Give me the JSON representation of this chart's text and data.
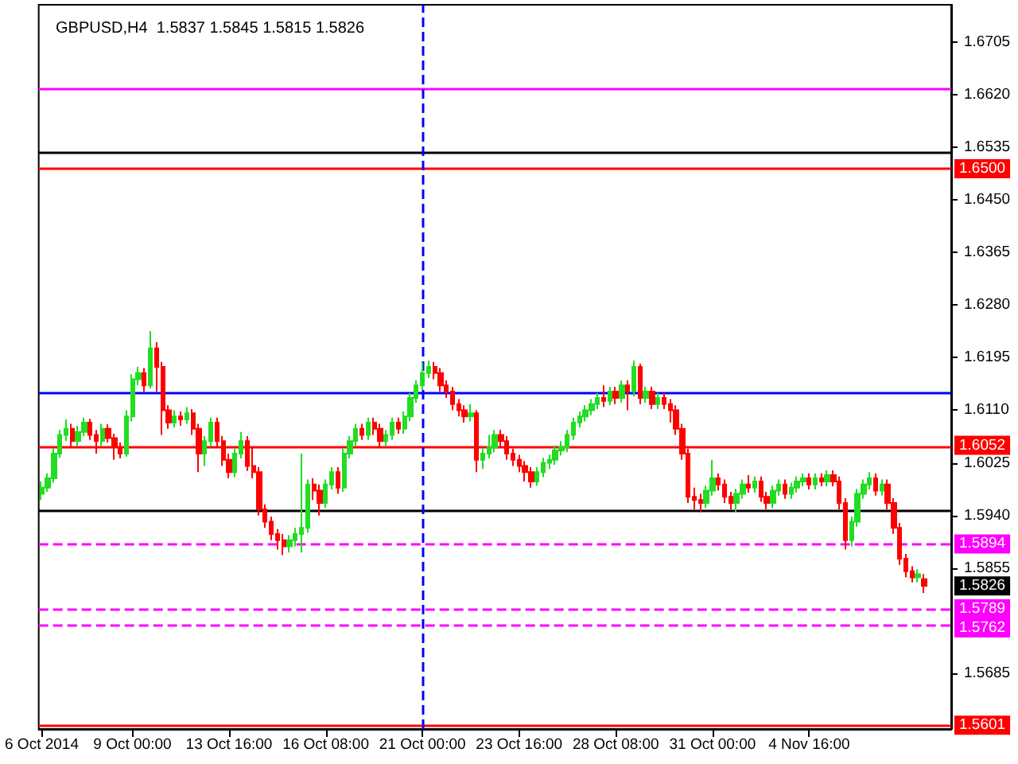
{
  "chart_data": {
    "type": "candlestick",
    "title": "GBPUSD,H4  1.5837 1.5845 1.5815 1.5826",
    "categories": [
      "6 Oct 2014",
      null,
      null,
      null,
      null,
      null,
      null,
      null,
      null,
      null,
      null,
      null,
      null,
      null,
      null,
      "9 Oct 00:00",
      null,
      null,
      null,
      null,
      null,
      null,
      null,
      null,
      null,
      null,
      null,
      null,
      null,
      null,
      null,
      "13 Oct 16:00",
      null,
      null,
      null,
      null,
      null,
      null,
      null,
      null,
      null,
      null,
      null,
      null,
      null,
      null,
      null,
      "16 Oct 08:00",
      null,
      null,
      null,
      null,
      null,
      null,
      null,
      null,
      null,
      null,
      null,
      null,
      null,
      null,
      null,
      "21 Oct 00:00",
      null,
      null,
      null,
      null,
      null,
      null,
      null,
      null,
      null,
      null,
      null,
      null,
      null,
      null,
      null,
      "23 Oct 16:00",
      null,
      null,
      null,
      null,
      null,
      null,
      null,
      null,
      null,
      null,
      null,
      null,
      null,
      null,
      null,
      "28 Oct 08:00",
      null,
      null,
      null,
      null,
      null,
      null,
      null,
      null,
      null,
      null,
      null,
      null,
      null,
      null,
      null,
      "31 Oct 00:00",
      null,
      null,
      null,
      null,
      null,
      null,
      null,
      null,
      null,
      null,
      null,
      null,
      null,
      null,
      null,
      "4 Nov 16:00",
      null,
      null,
      null,
      null,
      null,
      null,
      null,
      null,
      null,
      null,
      null,
      null,
      null,
      null,
      null,
      null,
      null,
      null,
      null
    ],
    "ohlc": [
      [
        1.5975,
        1.5995,
        1.5965,
        1.5985
      ],
      [
        1.5985,
        1.6008,
        1.5978,
        1.6
      ],
      [
        1.6,
        1.6048,
        1.5993,
        1.604
      ],
      [
        1.604,
        1.6078,
        1.6033,
        1.607
      ],
      [
        1.607,
        1.6095,
        1.606,
        1.608
      ],
      [
        1.608,
        1.6088,
        1.605,
        1.606
      ],
      [
        1.606,
        1.6085,
        1.6052,
        1.6075
      ],
      [
        1.6075,
        1.6098,
        1.6068,
        1.609
      ],
      [
        1.609,
        1.6096,
        1.6062,
        1.607
      ],
      [
        1.607,
        1.6078,
        1.604,
        1.606
      ],
      [
        1.606,
        1.6088,
        1.6052,
        1.608
      ],
      [
        1.608,
        1.6087,
        1.6058,
        1.6065
      ],
      [
        1.6065,
        1.6072,
        1.603,
        1.605
      ],
      [
        1.605,
        1.6058,
        1.6032,
        1.604
      ],
      [
        1.604,
        1.611,
        1.6035,
        1.61
      ],
      [
        1.61,
        1.6168,
        1.6092,
        1.616
      ],
      [
        1.616,
        1.618,
        1.615,
        1.617
      ],
      [
        1.617,
        1.6178,
        1.614,
        1.615
      ],
      [
        1.615,
        1.6238,
        1.6145,
        1.621
      ],
      [
        1.621,
        1.622,
        1.614,
        1.618
      ],
      [
        1.618,
        1.6188,
        1.607,
        1.611
      ],
      [
        1.611,
        1.6118,
        1.608,
        1.609
      ],
      [
        1.609,
        1.611,
        1.6082,
        1.61
      ],
      [
        1.61,
        1.6108,
        1.6085,
        1.6095
      ],
      [
        1.6095,
        1.6115,
        1.6088,
        1.6105
      ],
      [
        1.6105,
        1.6112,
        1.607,
        1.608
      ],
      [
        1.608,
        1.6088,
        1.601,
        1.604
      ],
      [
        1.604,
        1.6068,
        1.602,
        1.606
      ],
      [
        1.606,
        1.6098,
        1.6052,
        1.609
      ],
      [
        1.609,
        1.6098,
        1.605,
        1.606
      ],
      [
        1.606,
        1.6068,
        1.602,
        1.603
      ],
      [
        1.603,
        1.604,
        1.6,
        1.601
      ],
      [
        1.601,
        1.6048,
        1.6002,
        1.604
      ],
      [
        1.604,
        1.6075,
        1.6032,
        1.606
      ],
      [
        1.606,
        1.6068,
        1.6012,
        1.602
      ],
      [
        1.602,
        1.605,
        1.6,
        1.601
      ],
      [
        1.601,
        1.6018,
        1.594,
        1.595
      ],
      [
        1.595,
        1.5958,
        1.592,
        1.593
      ],
      [
        1.593,
        1.5938,
        1.59,
        1.591
      ],
      [
        1.591,
        1.5918,
        1.5885,
        1.59
      ],
      [
        1.59,
        1.591,
        1.5876,
        1.589
      ],
      [
        1.589,
        1.5908,
        1.588,
        1.59
      ],
      [
        1.59,
        1.592,
        1.589,
        1.591
      ],
      [
        1.591,
        1.604,
        1.588,
        1.592
      ],
      [
        1.592,
        1.5998,
        1.5912,
        1.599
      ],
      [
        1.599,
        1.6,
        1.5965,
        1.598
      ],
      [
        1.598,
        1.599,
        1.594,
        1.596
      ],
      [
        1.596,
        1.5998,
        1.5952,
        1.599
      ],
      [
        1.599,
        1.6018,
        1.5982,
        1.601
      ],
      [
        1.601,
        1.6018,
        1.5975,
        1.5985
      ],
      [
        1.5985,
        1.6048,
        1.5978,
        1.604
      ],
      [
        1.604,
        1.6068,
        1.6032,
        1.606
      ],
      [
        1.606,
        1.6088,
        1.6052,
        1.608
      ],
      [
        1.608,
        1.6088,
        1.6062,
        1.607
      ],
      [
        1.607,
        1.6098,
        1.6062,
        1.609
      ],
      [
        1.609,
        1.6098,
        1.607,
        1.608
      ],
      [
        1.608,
        1.6088,
        1.605,
        1.606
      ],
      [
        1.606,
        1.6078,
        1.6052,
        1.607
      ],
      [
        1.607,
        1.6098,
        1.6062,
        1.609
      ],
      [
        1.609,
        1.6098,
        1.6072,
        1.608
      ],
      [
        1.608,
        1.6108,
        1.6072,
        1.61
      ],
      [
        1.61,
        1.6138,
        1.6092,
        1.613
      ],
      [
        1.613,
        1.6158,
        1.6122,
        1.615
      ],
      [
        1.615,
        1.6187,
        1.6142,
        1.617
      ],
      [
        1.617,
        1.619,
        1.6162,
        1.618
      ],
      [
        1.618,
        1.6188,
        1.616,
        1.617
      ],
      [
        1.617,
        1.6178,
        1.614,
        1.615
      ],
      [
        1.615,
        1.6158,
        1.613,
        1.614
      ],
      [
        1.614,
        1.6148,
        1.611,
        1.612
      ],
      [
        1.612,
        1.6128,
        1.61,
        1.611
      ],
      [
        1.611,
        1.6118,
        1.609,
        1.61
      ],
      [
        1.61,
        1.612,
        1.6092,
        1.6105
      ],
      [
        1.6105,
        1.611,
        1.601,
        1.603
      ],
      [
        1.603,
        1.6048,
        1.6015,
        1.604
      ],
      [
        1.604,
        1.607,
        1.6032,
        1.605
      ],
      [
        1.605,
        1.6078,
        1.6042,
        1.607
      ],
      [
        1.607,
        1.6078,
        1.605,
        1.606
      ],
      [
        1.606,
        1.6068,
        1.603,
        1.604
      ],
      [
        1.604,
        1.6048,
        1.602,
        1.603
      ],
      [
        1.603,
        1.6038,
        1.601,
        1.602
      ],
      [
        1.602,
        1.6028,
        1.5995,
        1.601
      ],
      [
        1.601,
        1.6018,
        1.5985,
        1.5995
      ],
      [
        1.5995,
        1.6018,
        1.5988,
        1.601
      ],
      [
        1.601,
        1.6033,
        1.6002,
        1.6025
      ],
      [
        1.6025,
        1.6038,
        1.6015,
        1.603
      ],
      [
        1.603,
        1.6053,
        1.6022,
        1.6045
      ],
      [
        1.6045,
        1.606,
        1.6037,
        1.605
      ],
      [
        1.605,
        1.6078,
        1.6042,
        1.607
      ],
      [
        1.607,
        1.6098,
        1.6062,
        1.609
      ],
      [
        1.609,
        1.6108,
        1.6082,
        1.61
      ],
      [
        1.61,
        1.6118,
        1.6092,
        1.611
      ],
      [
        1.611,
        1.6128,
        1.6102,
        1.612
      ],
      [
        1.612,
        1.6138,
        1.6112,
        1.613
      ],
      [
        1.613,
        1.615,
        1.6115,
        1.6125
      ],
      [
        1.6125,
        1.6148,
        1.6118,
        1.614
      ],
      [
        1.614,
        1.6148,
        1.612,
        1.613
      ],
      [
        1.613,
        1.6158,
        1.6122,
        1.615
      ],
      [
        1.615,
        1.6158,
        1.611,
        1.614
      ],
      [
        1.614,
        1.619,
        1.6132,
        1.618
      ],
      [
        1.618,
        1.6185,
        1.612,
        1.613
      ],
      [
        1.613,
        1.6148,
        1.6122,
        1.614
      ],
      [
        1.614,
        1.6148,
        1.6112,
        1.612
      ],
      [
        1.612,
        1.6138,
        1.6112,
        1.613
      ],
      [
        1.613,
        1.6138,
        1.6112,
        1.612
      ],
      [
        1.612,
        1.6128,
        1.609,
        1.611
      ],
      [
        1.611,
        1.6118,
        1.607,
        1.608
      ],
      [
        1.608,
        1.6088,
        1.603,
        1.604
      ],
      [
        1.604,
        1.6048,
        1.596,
        1.597
      ],
      [
        1.597,
        1.5985,
        1.595,
        1.5965
      ],
      [
        1.5965,
        1.5975,
        1.5945,
        1.596
      ],
      [
        1.596,
        1.5988,
        1.5952,
        1.598
      ],
      [
        1.598,
        1.603,
        1.5972,
        1.6
      ],
      [
        1.6,
        1.6008,
        1.598,
        1.599
      ],
      [
        1.599,
        1.5998,
        1.596,
        1.597
      ],
      [
        1.597,
        1.5978,
        1.595,
        1.596
      ],
      [
        1.596,
        1.5983,
        1.5945,
        1.5975
      ],
      [
        1.5975,
        1.5998,
        1.5967,
        1.599
      ],
      [
        1.599,
        1.6005,
        1.5977,
        1.5985
      ],
      [
        1.5985,
        1.6003,
        1.5977,
        1.5995
      ],
      [
        1.5995,
        1.6003,
        1.5962,
        1.597
      ],
      [
        1.597,
        1.5978,
        1.595,
        1.596
      ],
      [
        1.596,
        1.5988,
        1.5952,
        1.598
      ],
      [
        1.598,
        1.5998,
        1.5972,
        1.599
      ],
      [
        1.599,
        1.5998,
        1.5967,
        1.5975
      ],
      [
        1.5975,
        1.5993,
        1.5967,
        1.5985
      ],
      [
        1.5985,
        1.6003,
        1.5977,
        1.5995
      ],
      [
        1.5995,
        1.6008,
        1.5987,
        1.6
      ],
      [
        1.6,
        1.6008,
        1.5982,
        1.599
      ],
      [
        1.599,
        1.6008,
        1.5982,
        1.6
      ],
      [
        1.6,
        1.6008,
        1.5987,
        1.5995
      ],
      [
        1.5995,
        1.6013,
        1.5987,
        1.6005
      ],
      [
        1.6005,
        1.6013,
        1.5987,
        1.5995
      ],
      [
        1.5995,
        1.6003,
        1.595,
        1.596
      ],
      [
        1.596,
        1.5968,
        1.5885,
        1.59
      ],
      [
        1.59,
        1.5938,
        1.589,
        1.593
      ],
      [
        1.593,
        1.5983,
        1.5922,
        1.5975
      ],
      [
        1.5975,
        1.5998,
        1.5967,
        1.599
      ],
      [
        1.599,
        1.601,
        1.5982,
        1.6
      ],
      [
        1.6,
        1.6008,
        1.5972,
        1.598
      ],
      [
        1.598,
        1.5998,
        1.5972,
        1.599
      ],
      [
        1.599,
        1.5998,
        1.595,
        1.596
      ],
      [
        1.596,
        1.5968,
        1.591,
        1.592
      ],
      [
        1.592,
        1.5928,
        1.586,
        1.587
      ],
      [
        1.587,
        1.5878,
        1.584,
        1.585
      ],
      [
        1.585,
        1.5858,
        1.5832,
        1.584
      ],
      [
        1.584,
        1.5853,
        1.5832,
        1.5845
      ],
      [
        1.5837,
        1.5845,
        1.5815,
        1.5826
      ]
    ],
    "ylim": [
      1.5595,
      1.6765
    ],
    "yticks": [
      1.6705,
      {
        "value": 1.662,
        "label": "1.6620"
      },
      1.6535,
      {
        "value": 1.645,
        "label": "1.6450"
      },
      1.6365,
      {
        "value": 1.628,
        "label": "1.6280"
      },
      1.6195,
      {
        "value": 1.611,
        "label": "1.6110"
      },
      1.6025,
      {
        "value": 1.594,
        "label": "1.5940"
      },
      1.5855,
      1.5685
    ],
    "ref_lines": [
      {
        "axis": "y",
        "value": 1.663,
        "color": "#ff00ff",
        "line_style": "solid"
      },
      {
        "axis": "y",
        "value": 1.6527,
        "color": "#000000",
        "line_style": "solid"
      },
      {
        "axis": "y",
        "value": 1.65,
        "label": "1.6500",
        "color": "#ff0000",
        "line_style": "solid"
      },
      {
        "axis": "y",
        "value": 1.6138,
        "color": "#0000ff",
        "line_style": "solid"
      },
      {
        "axis": "y",
        "value": 1.6052,
        "label": "1.6052",
        "color": "#ff0000",
        "line_style": "solid"
      },
      {
        "axis": "y",
        "value": 1.5948,
        "color": "#000000",
        "line_style": "solid"
      },
      {
        "axis": "y",
        "value": 1.5894,
        "label": "1.5894",
        "color": "#ff00ff",
        "line_style": "dashed"
      },
      {
        "axis": "y",
        "value": 1.5789,
        "label": "1.5789",
        "color": "#ff00ff",
        "line_style": "dashed"
      },
      {
        "axis": "y",
        "value": 1.5762,
        "label": "1.5762",
        "color": "#ff00ff",
        "line_style": "dashed"
      },
      {
        "axis": "y",
        "value": 1.5601,
        "label": "1.5601",
        "color": "#ff0000",
        "line_style": "solid"
      },
      {
        "axis": "x",
        "value": "21 Oct 00:00",
        "color": "#0000ff",
        "line_style": "dashed"
      }
    ],
    "annotations": [
      "1.5826"
    ],
    "grid": false
  }
}
